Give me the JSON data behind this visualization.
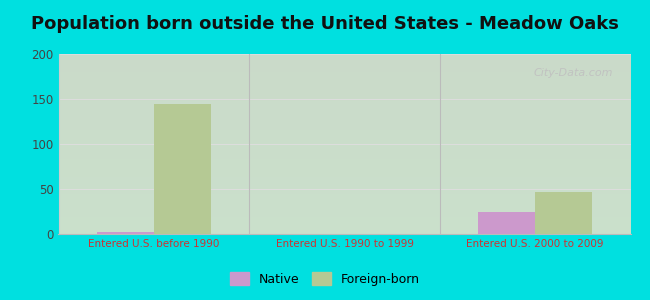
{
  "title": "Population born outside the United States - Meadow Oaks",
  "categories": [
    "Entered U.S. before 1990",
    "Entered U.S. 1990 to 1999",
    "Entered U.S. 2000 to 2009"
  ],
  "native_values": [
    2,
    0,
    25
  ],
  "foreign_values": [
    144,
    0,
    47
  ],
  "native_color": "#cc99cc",
  "foreign_color": "#b5c994",
  "background_color": "#00e0e0",
  "plot_bg_color": "#eef5e8",
  "ylim": [
    0,
    200
  ],
  "yticks": [
    0,
    50,
    100,
    150,
    200
  ],
  "bar_width": 0.3,
  "title_fontsize": 13,
  "axis_label_color": "#cc3333",
  "grid_color": "#dddddd",
  "watermark": "City-Data.com"
}
